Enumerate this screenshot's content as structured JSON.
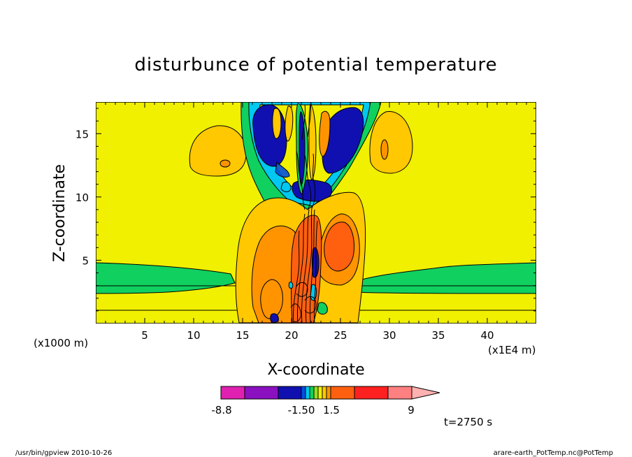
{
  "chart_data": {
    "type": "heatmap",
    "title": "disturbunce of potential temperature",
    "xlabel": "X-coordinate",
    "ylabel": "Z-coordinate",
    "x_unit_left": "(x1000 m)",
    "x_unit_right": "(x1E4 m)",
    "xlim": [
      0,
      45
    ],
    "ylim": [
      0,
      17.5
    ],
    "x_ticks": [
      "5",
      "10",
      "15",
      "20",
      "25",
      "30",
      "35",
      "40"
    ],
    "y_ticks": [
      "5",
      "10",
      "15"
    ],
    "x_tick_values": [
      5,
      10,
      15,
      20,
      25,
      30,
      35,
      40
    ],
    "y_tick_values": [
      5,
      10,
      15
    ],
    "colorbar": {
      "colors": [
        "#e020b0",
        "#8a10c0",
        "#1010b0",
        "#0050e0",
        "#00c8f0",
        "#10d060",
        "#90e020",
        "#f0f000",
        "#ffc800",
        "#ff9400",
        "#ff6010",
        "#ff2020",
        "#ff8080",
        "#ffb0b0"
      ],
      "labels": [
        "-8.8",
        "-1.50",
        "1.5",
        "9"
      ],
      "label_values": [
        -8.8,
        -1.5,
        1.5,
        9
      ]
    },
    "annotation": "t=2750 s"
  },
  "footer": {
    "left": "/usr/bin/gpview   2010-10-26",
    "right": "arare-earth_PotTemp.nc@PotTemp"
  }
}
